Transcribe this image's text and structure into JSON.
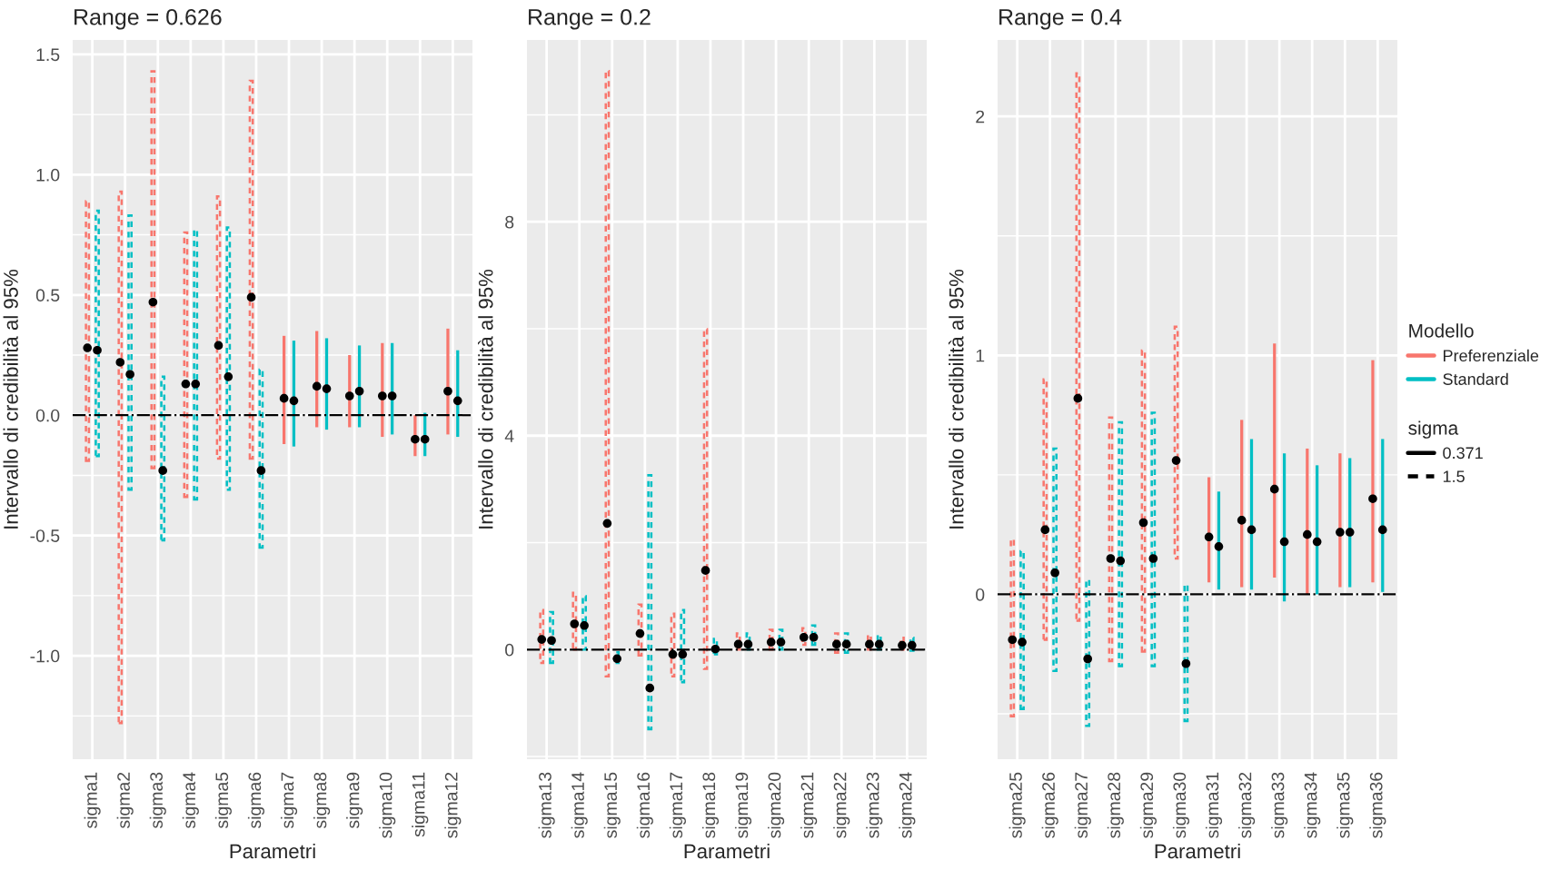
{
  "chart_data": [
    {
      "type": "bar",
      "title": "Range = 0.626",
      "xlabel": "Parametri",
      "ylabel": "Intervallo di credibilità al 95%",
      "categories": [
        "sigma1",
        "sigma2",
        "sigma3",
        "sigma4",
        "sigma5",
        "sigma6",
        "sigma7",
        "sigma8",
        "sigma9",
        "sigma10",
        "sigma11",
        "sigma12"
      ],
      "ylim": [
        -1.43,
        1.56
      ],
      "yticks": [
        {
          "value": -1,
          "label": "-1.0"
        },
        -0.5,
        {
          "value": 0,
          "label": "0.0"
        },
        0.5,
        {
          "value": 1,
          "label": "1.0"
        },
        1.5
      ],
      "grid": true,
      "marker": "circle",
      "legend": "right",
      "legend_title": "Modello",
      "annotations": [
        "sigma",
        "0.371",
        "1.5"
      ],
      "ref_lines": [
        {
          "axis": "y",
          "value": 0,
          "color": "#000000",
          "line_style": "dashdot"
        }
      ],
      "series": [
        {
          "name": "Preferenziale",
          "color": "#f8766d",
          "line_style": "dashed",
          "base": [
            -0.19,
            -1.28,
            -0.22,
            -0.34,
            -0.18,
            -0.18,
            null,
            null,
            null,
            null,
            null,
            null
          ],
          "values": [
            1.08,
            2.21,
            1.65,
            1.1,
            1.09,
            1.57,
            null,
            null,
            null,
            null,
            null,
            null
          ]
        },
        {
          "name": "Standard",
          "color": "#00bfc4",
          "line_style": "dashed",
          "base": [
            -0.17,
            -0.31,
            -0.52,
            -0.35,
            -0.31,
            -0.55,
            null,
            null,
            null,
            null,
            null,
            null
          ],
          "values": [
            1.02,
            1.14,
            0.68,
            1.12,
            1.09,
            0.74,
            null,
            null,
            null,
            null,
            null,
            null
          ]
        },
        {
          "color": "#f8766d",
          "line_style": "solid",
          "base": [
            null,
            null,
            null,
            null,
            null,
            null,
            -0.12,
            -0.05,
            -0.05,
            -0.09,
            -0.17,
            -0.08
          ],
          "values": [
            null,
            null,
            null,
            null,
            null,
            null,
            0.45,
            0.4,
            0.3,
            0.39,
            0.17,
            0.44
          ]
        },
        {
          "color": "#00bfc4",
          "line_style": "solid",
          "base": [
            null,
            null,
            null,
            null,
            null,
            null,
            -0.13,
            -0.06,
            -0.05,
            -0.08,
            -0.17,
            -0.09
          ],
          "values": [
            null,
            null,
            null,
            null,
            null,
            null,
            0.44,
            0.38,
            0.34,
            0.38,
            0.18,
            0.36
          ]
        },
        {
          "type": "scatter",
          "color": "#000000",
          "values": [
            0.28,
            0.22,
            0.47,
            0.13,
            0.29,
            0.49,
            0.07,
            0.12,
            0.08,
            0.08,
            -0.1,
            0.1
          ]
        },
        {
          "type": "scatter",
          "color": "#000000",
          "values": [
            0.27,
            0.17,
            -0.23,
            0.13,
            0.16,
            -0.23,
            0.06,
            0.11,
            0.1,
            0.08,
            -0.1,
            0.06
          ]
        }
      ]
    },
    {
      "type": "bar",
      "title": "Range = 0.2",
      "xlabel": "Parametri",
      "ylabel": "Intervallo di credibilità al 95%",
      "categories": [
        "sigma13",
        "sigma14",
        "sigma15",
        "sigma16",
        "sigma17",
        "sigma18",
        "sigma19",
        "sigma20",
        "sigma21",
        "sigma22",
        "sigma23",
        "sigma24"
      ],
      "ylim": [
        -2.05,
        11.4
      ],
      "yticks": [
        0,
        4,
        8
      ],
      "grid": true,
      "marker": "circle",
      "ref_lines": [
        {
          "axis": "y",
          "value": 0,
          "color": "#000000",
          "line_style": "dashdot"
        }
      ],
      "series": [
        {
          "name": "Preferenziale",
          "color": "#f8766d",
          "line_style": "dashed",
          "base": [
            -0.25,
            0,
            -0.5,
            -0.11,
            -0.5,
            -0.36,
            0,
            0,
            0.09,
            -0.06,
            0,
            0
          ],
          "values": [
            0.99,
            1.06,
            11.32,
            0.95,
            1.17,
            6.35,
            0.3,
            0.37,
            0.31,
            0.36,
            0.27,
            0.22
          ]
        },
        {
          "name": "Standard",
          "color": "#00bfc4",
          "line_style": "dashed",
          "base": [
            -0.25,
            0,
            -0.25,
            -1.49,
            -0.61,
            -0.09,
            0,
            0,
            0.09,
            -0.06,
            0,
            -0.02
          ],
          "values": [
            0.95,
            1.0,
            0.2,
            4.75,
            1.35,
            0.29,
            0.3,
            0.37,
            0.36,
            0.36,
            0.27,
            0.24
          ]
        },
        {
          "type": "scatter",
          "color": "#000000",
          "values": [
            0.19,
            0.48,
            2.36,
            0.3,
            -0.09,
            1.48,
            0.1,
            0.14,
            0.23,
            0.1,
            0.1,
            0.08
          ]
        },
        {
          "type": "scatter",
          "color": "#000000",
          "values": [
            0.17,
            0.45,
            -0.17,
            -0.72,
            -0.09,
            0.01,
            0.1,
            0.14,
            0.23,
            0.1,
            0.1,
            0.08
          ]
        }
      ]
    },
    {
      "type": "bar",
      "title": "Range = 0.4",
      "xlabel": "Parametri",
      "ylabel": "Intervallo di credibilità al 95%",
      "categories": [
        "sigma25",
        "sigma26",
        "sigma27",
        "sigma28",
        "sigma29",
        "sigma30",
        "sigma31",
        "sigma32",
        "sigma33",
        "sigma34",
        "sigma35",
        "sigma36"
      ],
      "ylim": [
        -0.69,
        2.32
      ],
      "yticks": [
        0,
        1,
        2
      ],
      "grid": true,
      "marker": "circle",
      "ref_lines": [
        {
          "axis": "y",
          "value": 0,
          "color": "#000000",
          "line_style": "dashdot"
        }
      ],
      "series": [
        {
          "name": "Preferenziale",
          "color": "#f8766d",
          "line_style": "dashed",
          "base": [
            -0.51,
            -0.19,
            -0.11,
            -0.28,
            -0.24,
            0.15,
            null,
            null,
            null,
            null,
            null,
            null
          ],
          "values": [
            0.74,
            1.09,
            2.29,
            1.02,
            1.26,
            0.97,
            null,
            null,
            null,
            null,
            null,
            null
          ]
        },
        {
          "name": "Standard",
          "color": "#00bfc4",
          "line_style": "dashed",
          "base": [
            -0.48,
            -0.32,
            -0.55,
            -0.3,
            -0.3,
            -0.53,
            null,
            null,
            null,
            null,
            null,
            null
          ],
          "values": [
            0.66,
            0.93,
            0.61,
            1.02,
            1.06,
            0.57,
            null,
            null,
            null,
            null,
            null,
            null
          ]
        },
        {
          "color": "#f8766d",
          "line_style": "solid",
          "base": [
            null,
            null,
            null,
            null,
            null,
            null,
            0.05,
            0.03,
            0.07,
            0,
            0.03,
            0.05
          ],
          "values": [
            null,
            null,
            null,
            null,
            null,
            null,
            0.44,
            0.7,
            0.98,
            0.61,
            0.56,
            0.93
          ]
        },
        {
          "color": "#00bfc4",
          "line_style": "solid",
          "base": [
            null,
            null,
            null,
            null,
            null,
            null,
            0.02,
            0.02,
            -0.03,
            0,
            0.03,
            0.01
          ],
          "values": [
            null,
            null,
            null,
            null,
            null,
            null,
            0.41,
            0.63,
            0.62,
            0.54,
            0.54,
            0.64
          ]
        },
        {
          "type": "scatter",
          "color": "#000000",
          "values": [
            -0.19,
            0.27,
            0.82,
            0.15,
            0.3,
            0.56,
            0.24,
            0.31,
            0.44,
            0.25,
            0.26,
            0.4
          ]
        },
        {
          "type": "scatter",
          "color": "#000000",
          "values": [
            -0.2,
            0.09,
            -0.27,
            0.14,
            0.15,
            -0.29,
            0.2,
            0.27,
            0.22,
            0.22,
            0.26,
            0.27
          ]
        }
      ]
    }
  ]
}
